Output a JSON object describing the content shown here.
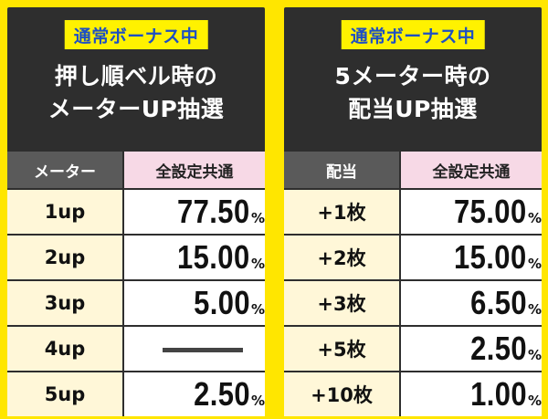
{
  "panels": [
    {
      "badge": "通常ボーナス中",
      "heading_lines": [
        "押し順ベル時の",
        "メーターUP抽選"
      ],
      "headers": [
        "メーター",
        "全設定共通"
      ],
      "rows": [
        {
          "label": "1up",
          "value": "77.50",
          "unit": "%"
        },
        {
          "label": "2up",
          "value": "15.00",
          "unit": "%"
        },
        {
          "label": "3up",
          "value": "5.00",
          "unit": "%"
        },
        {
          "label": "4up",
          "value": "",
          "unit": ""
        },
        {
          "label": "5up",
          "value": "2.50",
          "unit": "%"
        }
      ]
    },
    {
      "badge": "通常ボーナス中",
      "heading_lines": [
        "5メーター時の",
        "配当UP抽選"
      ],
      "headers": [
        "配当",
        "全設定共通"
      ],
      "rows": [
        {
          "label": "+1枚",
          "value": "75.00",
          "unit": "%"
        },
        {
          "label": "+2枚",
          "value": "15.00",
          "unit": "%"
        },
        {
          "label": "+3枚",
          "value": "6.50",
          "unit": "%"
        },
        {
          "label": "+5枚",
          "value": "2.50",
          "unit": "%"
        },
        {
          "label": "+10枚",
          "value": "1.00",
          "unit": "%"
        }
      ]
    }
  ],
  "colors": {
    "background": "#ffe600",
    "panel": "#2e2e2e",
    "badge_bg": "#fff200",
    "badge_text": "#1d4fc4",
    "header_dark": "#5a5a5a",
    "header_pink": "#f7d9e6",
    "label_cell": "#fff7d8",
    "value_cell": "#ffffff"
  }
}
